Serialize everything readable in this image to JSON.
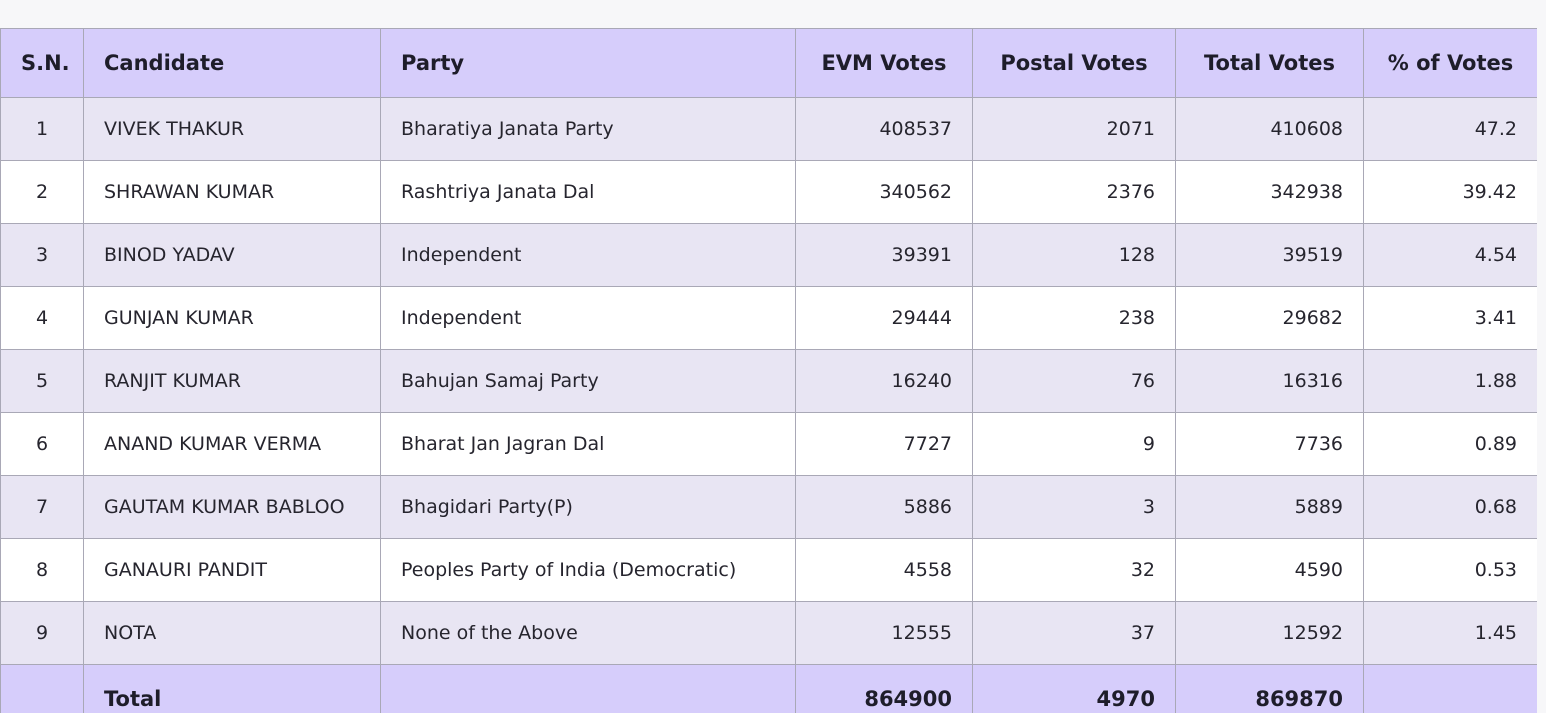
{
  "table": {
    "headers": [
      "S.N.",
      "Candidate",
      "Party",
      "EVM Votes",
      "Postal Votes",
      "Total Votes",
      "% of Votes"
    ],
    "rows": [
      {
        "sn": "1",
        "candidate": "VIVEK THAKUR",
        "party": "Bharatiya Janata Party",
        "evm": "408537",
        "postal": "2071",
        "total": "410608",
        "pct": "47.2"
      },
      {
        "sn": "2",
        "candidate": "SHRAWAN KUMAR",
        "party": "Rashtriya Janata Dal",
        "evm": "340562",
        "postal": "2376",
        "total": "342938",
        "pct": "39.42"
      },
      {
        "sn": "3",
        "candidate": "BINOD YADAV",
        "party": "Independent",
        "evm": "39391",
        "postal": "128",
        "total": "39519",
        "pct": "4.54"
      },
      {
        "sn": "4",
        "candidate": "GUNJAN KUMAR",
        "party": "Independent",
        "evm": "29444",
        "postal": "238",
        "total": "29682",
        "pct": "3.41"
      },
      {
        "sn": "5",
        "candidate": "RANJIT KUMAR",
        "party": "Bahujan Samaj Party",
        "evm": "16240",
        "postal": "76",
        "total": "16316",
        "pct": "1.88"
      },
      {
        "sn": "6",
        "candidate": "ANAND KUMAR VERMA",
        "party": "Bharat Jan Jagran Dal",
        "evm": "7727",
        "postal": "9",
        "total": "7736",
        "pct": "0.89"
      },
      {
        "sn": "7",
        "candidate": "GAUTAM KUMAR BABLOO",
        "party": "Bhagidari Party(P)",
        "evm": "5886",
        "postal": "3",
        "total": "5889",
        "pct": "0.68"
      },
      {
        "sn": "8",
        "candidate": "GANAURI PANDIT",
        "party": "Peoples Party of India (Democratic)",
        "evm": "4558",
        "postal": "32",
        "total": "4590",
        "pct": "0.53"
      },
      {
        "sn": "9",
        "candidate": "NOTA",
        "party": "None of the Above",
        "evm": "12555",
        "postal": "37",
        "total": "12592",
        "pct": "1.45"
      }
    ],
    "footer": {
      "label": "Total",
      "evm": "864900",
      "postal": "4970",
      "total": "869870"
    }
  },
  "colors": {
    "header_bg": "#d6cdfb",
    "row_alt_bg": "#e8e5f3",
    "row_bg": "#ffffff",
    "border": "#a9a8b6"
  }
}
